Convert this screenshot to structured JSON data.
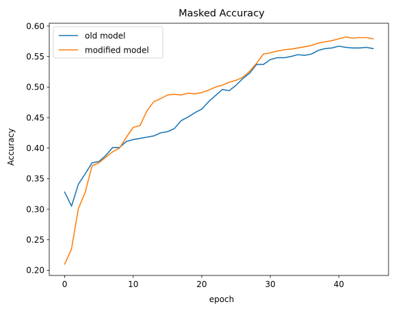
{
  "chart_data": {
    "type": "line",
    "title": "Masked Accuracy",
    "xlabel": "epoch",
    "ylabel": "Accuracy",
    "xlim": [
      -2.25,
      47.25
    ],
    "ylim": [
      0.1915,
      0.6045
    ],
    "xticks": [
      0,
      10,
      20,
      30,
      40
    ],
    "xtick_labels": [
      "0",
      "10",
      "20",
      "30",
      "40"
    ],
    "yticks": [
      0.2,
      0.25,
      0.3,
      0.35,
      0.4,
      0.45,
      0.5,
      0.55,
      0.6
    ],
    "ytick_labels": [
      "0.20",
      "0.25",
      "0.30",
      "0.35",
      "0.40",
      "0.45",
      "0.50",
      "0.55",
      "0.60"
    ],
    "grid": false,
    "legend_position": "upper-left",
    "x": [
      0,
      1,
      2,
      3,
      4,
      5,
      6,
      7,
      8,
      9,
      10,
      11,
      12,
      13,
      14,
      15,
      16,
      17,
      18,
      19,
      20,
      21,
      22,
      23,
      24,
      25,
      26,
      27,
      28,
      29,
      30,
      31,
      32,
      33,
      34,
      35,
      36,
      37,
      38,
      39,
      40,
      41,
      42,
      43,
      44,
      45
    ],
    "series": [
      {
        "name": "old model",
        "color": "#1f77b4",
        "values": [
          0.328,
          0.305,
          0.341,
          0.358,
          0.376,
          0.378,
          0.388,
          0.401,
          0.401,
          0.411,
          0.414,
          0.416,
          0.418,
          0.42,
          0.425,
          0.427,
          0.432,
          0.445,
          0.451,
          0.458,
          0.464,
          0.476,
          0.486,
          0.496,
          0.494,
          0.503,
          0.514,
          0.523,
          0.537,
          0.537,
          0.545,
          0.548,
          0.548,
          0.55,
          0.553,
          0.552,
          0.554,
          0.56,
          0.563,
          0.564,
          0.567,
          0.565,
          0.564,
          0.564,
          0.565,
          0.563
        ]
      },
      {
        "name": "modified model",
        "color": "#ff7f0e",
        "values": [
          0.21,
          0.235,
          0.301,
          0.328,
          0.371,
          0.376,
          0.385,
          0.394,
          0.4,
          0.418,
          0.434,
          0.437,
          0.461,
          0.476,
          0.481,
          0.487,
          0.488,
          0.487,
          0.49,
          0.489,
          0.491,
          0.495,
          0.5,
          0.503,
          0.508,
          0.511,
          0.516,
          0.526,
          0.539,
          0.554,
          0.556,
          0.559,
          0.561,
          0.562,
          0.564,
          0.566,
          0.568,
          0.572,
          0.574,
          0.576,
          0.579,
          0.582,
          0.58,
          0.581,
          0.581,
          0.579
        ]
      }
    ]
  }
}
